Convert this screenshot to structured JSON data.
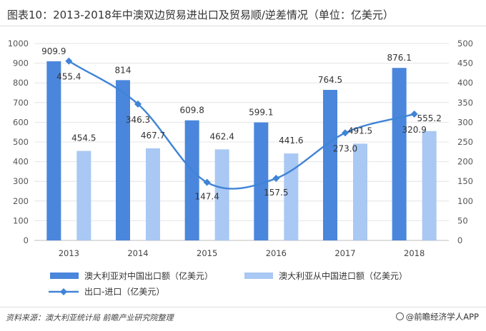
{
  "header": {
    "title": "图表10：2013-2018年中澳双边贸易进出口及贸易顺/逆差情况（单位：亿美元）"
  },
  "footer": {
    "source": "资料来源：澳大利亚统计局 前瞻产业研究院整理",
    "brand": "@前瞻经济学人APP"
  },
  "chart_data": {
    "type": "bar",
    "categories": [
      "2013",
      "2014",
      "2015",
      "2016",
      "2017",
      "2018"
    ],
    "series": [
      {
        "name": "澳大利亚对中国出口额（亿美元）",
        "kind": "bar",
        "axis": "left",
        "color": "#4a86dc",
        "values": [
          909.9,
          814,
          609.8,
          599.1,
          764.5,
          876.1
        ],
        "labels": [
          "909.9",
          "814",
          "609.8",
          "599.1",
          "764.5",
          "876.1"
        ]
      },
      {
        "name": "澳大利亚从中国进口额（亿美元）",
        "kind": "bar",
        "axis": "left",
        "color": "#a9c8f3",
        "values": [
          454.5,
          467.7,
          462.4,
          441.6,
          491.5,
          555.2
        ],
        "labels": [
          "454.5",
          "467.7",
          "462.4",
          "441.6",
          "491.5",
          "555.2"
        ]
      },
      {
        "name": "出口-进口（亿美元）",
        "kind": "line",
        "axis": "right",
        "color": "#3f84d6",
        "values": [
          455.4,
          346.3,
          147.4,
          157.5,
          273.0,
          320.9
        ],
        "labels": [
          "455.4",
          "346.3",
          "147.4",
          "157.5",
          "273.0",
          "320.9"
        ]
      }
    ],
    "y_left": {
      "min": 0,
      "max": 1000,
      "ticks": [
        "0",
        "100",
        "200",
        "300",
        "400",
        "500",
        "600",
        "700",
        "800",
        "900",
        "1000"
      ]
    },
    "y_right": {
      "min": 0,
      "max": 500,
      "ticks": [
        "0",
        "50",
        "100",
        "150",
        "200",
        "250",
        "300",
        "350",
        "400",
        "450",
        "500"
      ]
    },
    "grid": true,
    "legend_position": "bottom"
  }
}
